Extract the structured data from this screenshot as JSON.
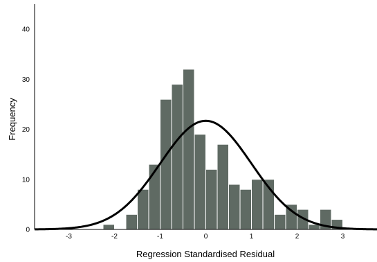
{
  "chart_data": {
    "type": "bar",
    "title": "",
    "xlabel": "Regression Standardised Residual",
    "ylabel": "Frequency",
    "xlim": [
      -3.75,
      3.75
    ],
    "ylim": [
      0,
      45
    ],
    "x_ticks": [
      -3,
      -2,
      -1,
      0,
      1,
      2,
      3
    ],
    "y_ticks": [
      0,
      10,
      20,
      30,
      40
    ],
    "grid": false,
    "bin_width": 0.25,
    "series": [
      {
        "bins": [
          {
            "x0": -2.25,
            "x1": -2.0,
            "count": 1
          },
          {
            "x0": -2.0,
            "x1": -1.75,
            "count": 0
          },
          {
            "x0": -1.75,
            "x1": -1.5,
            "count": 3
          },
          {
            "x0": -1.5,
            "x1": -1.25,
            "count": 8
          },
          {
            "x0": -1.25,
            "x1": -1.0,
            "count": 13
          },
          {
            "x0": -1.0,
            "x1": -0.75,
            "count": 26
          },
          {
            "x0": -0.75,
            "x1": -0.5,
            "count": 29
          },
          {
            "x0": -0.5,
            "x1": -0.25,
            "count": 32
          },
          {
            "x0": -0.25,
            "x1": 0.0,
            "count": 19
          },
          {
            "x0": 0.0,
            "x1": 0.25,
            "count": 12
          },
          {
            "x0": 0.25,
            "x1": 0.5,
            "count": 17
          },
          {
            "x0": 0.5,
            "x1": 0.75,
            "count": 9
          },
          {
            "x0": 0.75,
            "x1": 1.0,
            "count": 8
          },
          {
            "x0": 1.0,
            "x1": 1.25,
            "count": 10
          },
          {
            "x0": 1.25,
            "x1": 1.5,
            "count": 10
          },
          {
            "x0": 1.5,
            "x1": 1.75,
            "count": 3
          },
          {
            "x0": 1.75,
            "x1": 2.0,
            "count": 5
          },
          {
            "x0": 2.0,
            "x1": 2.25,
            "count": 4
          },
          {
            "x0": 2.25,
            "x1": 2.5,
            "count": 1
          },
          {
            "x0": 2.5,
            "x1": 2.75,
            "count": 4
          },
          {
            "x0": 2.75,
            "x1": 3.0,
            "count": 2
          }
        ]
      }
    ],
    "normal_curve": {
      "mean": 0.0,
      "sd": 1.0,
      "peak": 21.7
    },
    "colors": {
      "bar_fill": "#5f6a63",
      "bar_stroke": "#ffffff",
      "curve": "#000000",
      "axis": "#000000"
    }
  }
}
